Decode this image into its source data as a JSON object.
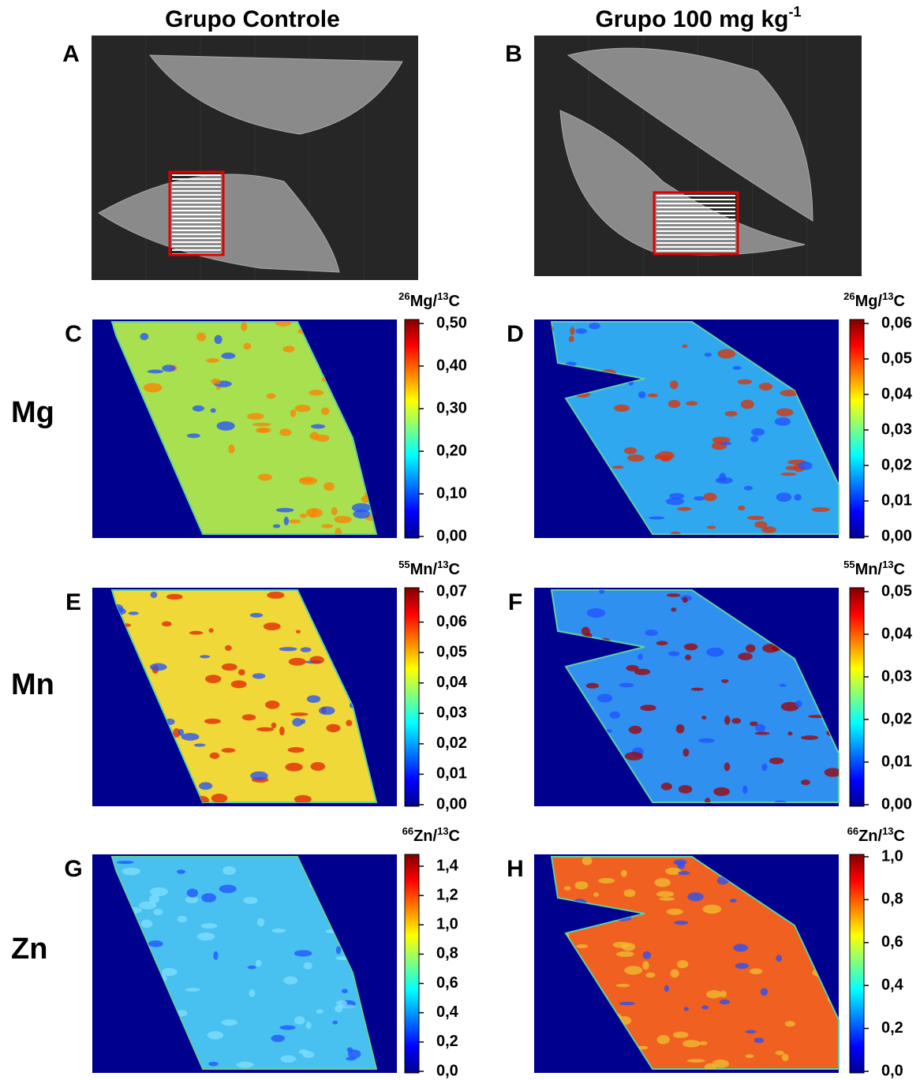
{
  "columns": [
    {
      "title": "Grupo Controle"
    },
    {
      "title": "Grupo 100 mg kg",
      "title_sup": "-1"
    }
  ],
  "photos": [
    {
      "letter": "A"
    },
    {
      "letter": "B"
    }
  ],
  "rows": [
    {
      "element": "Mg"
    },
    {
      "element": "Mn"
    },
    {
      "element": "Zn"
    }
  ],
  "maps": [
    {
      "letter": "C",
      "scale": {
        "mass": "26",
        "symbol": "Mg/",
        "ref_mass": "13",
        "ref_symbol": "C"
      },
      "ticks": [
        "0,50",
        "0,40",
        "0,30",
        "0,20",
        "0,10",
        "0,00"
      ]
    },
    {
      "letter": "D",
      "scale": {
        "mass": "26",
        "symbol": "Mg/",
        "ref_mass": "13",
        "ref_symbol": "C"
      },
      "ticks": [
        "0,06",
        "0,05",
        "0,04",
        "0,03",
        "0,02",
        "0,01",
        "0,00"
      ]
    },
    {
      "letter": "E",
      "scale": {
        "mass": "55",
        "symbol": "Mn/",
        "ref_mass": "13",
        "ref_symbol": "C"
      },
      "ticks": [
        "0,07",
        "0,06",
        "0,05",
        "0,04",
        "0,03",
        "0,02",
        "0,01",
        "0,00"
      ]
    },
    {
      "letter": "F",
      "scale": {
        "mass": "55",
        "symbol": "Mn/",
        "ref_mass": "13",
        "ref_symbol": "C"
      },
      "ticks": [
        "0,05",
        "0,04",
        "0,03",
        "0,02",
        "0,01",
        "0,00"
      ]
    },
    {
      "letter": "G",
      "scale": {
        "mass": "66",
        "symbol": "Zn/",
        "ref_mass": "13",
        "ref_symbol": "C"
      },
      "ticks": [
        "1,4",
        "1,2",
        "1,0",
        "0,8",
        "0,6",
        "0,4",
        "0,2",
        "0,0"
      ]
    },
    {
      "letter": "H",
      "scale": {
        "mass": "66",
        "symbol": "Zn/",
        "ref_mass": "13",
        "ref_symbol": "C"
      },
      "ticks": [
        "1,0",
        "0,8",
        "0,6",
        "0,4",
        "0,2",
        "0,0"
      ]
    }
  ]
}
